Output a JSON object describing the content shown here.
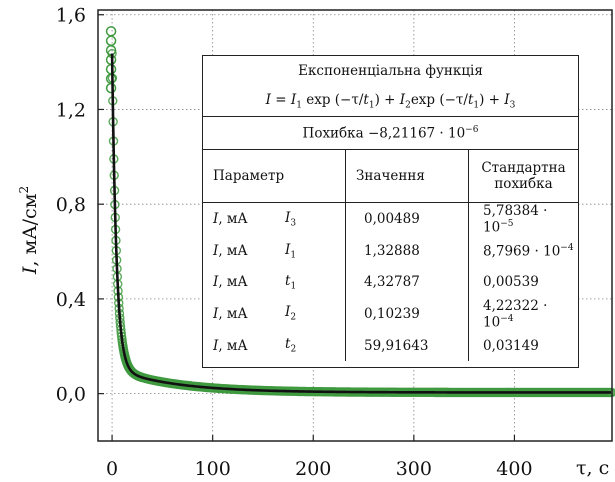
{
  "chart_data": {
    "type": "scatter",
    "xlabel": "τ, с",
    "ylabel": "I, мА/см²",
    "xlim": [
      -14,
      497
    ],
    "ylim": [
      -0.2,
      1.62
    ],
    "x_ticks": [
      "0",
      "100",
      "200",
      "300",
      "400"
    ],
    "y_ticks": [
      "0,0",
      "0,4",
      "0,8",
      "1,2",
      "1,6"
    ],
    "grid": true,
    "model": {
      "I3": 0.00489,
      "I1": 1.32888,
      "t1": 4.32787,
      "I2": 0.10239,
      "t2": 59.91643
    },
    "series": [
      {
        "marker": "open-circle",
        "color": "#3f9a3f",
        "line_color": "#111111",
        "x_start": 0,
        "x_end": 497
      }
    ],
    "peak_points": [
      [
        -1,
        1.53
      ],
      [
        -1,
        1.49
      ],
      [
        -1,
        1.45
      ],
      [
        -1,
        1.41
      ],
      [
        -1,
        1.37
      ],
      [
        -1,
        1.33
      ],
      [
        -1,
        1.29
      ]
    ]
  },
  "table": {
    "title": "Експоненціальна функція",
    "formula": "I = I1 exp (−τ/t1) + I2exp (−τ/t1) + I3",
    "error_label": "Похибка",
    "error_value": "−8,21167 · 10−6",
    "headers": {
      "param": "Параметр",
      "value": "Значення",
      "stderr_line1": "Стандартна",
      "stderr_line2": "похибка"
    },
    "rows": [
      {
        "unit": "I, мА",
        "name": "I3",
        "value": "0,00489",
        "stderr": "5,78384 · 10−5"
      },
      {
        "unit": "I, мА",
        "name": "I1",
        "value": "1,32888",
        "stderr": "8,7969 · 10−4"
      },
      {
        "unit": "I, мА",
        "name": "t1",
        "value": "4,32787",
        "stderr": "0,00539"
      },
      {
        "unit": "I, мА",
        "name": "I2",
        "value": "0,10239",
        "stderr": "4,22322 · 10−4"
      },
      {
        "unit": "I, мА",
        "name": "t2",
        "value": "59,91643",
        "stderr": "0,03149"
      }
    ]
  }
}
